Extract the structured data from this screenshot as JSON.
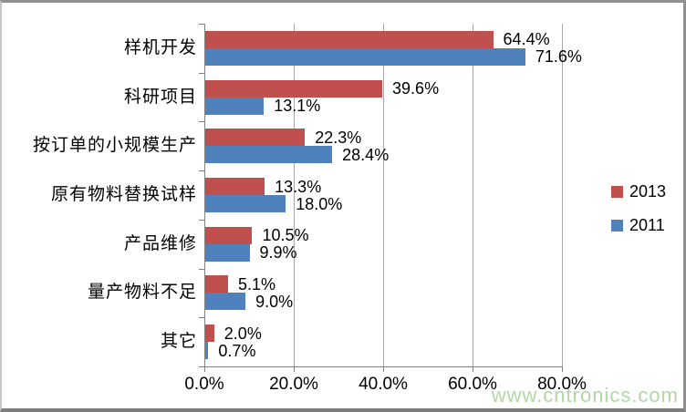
{
  "chart_data": {
    "type": "bar",
    "orientation": "horizontal",
    "title": "",
    "xlabel": "",
    "ylabel": "",
    "categories": [
      "样机开发",
      "科研项目",
      "按订单的小规模生产",
      "原有物料替换试样",
      "产品维修",
      "量产物料不足",
      "其它"
    ],
    "series": [
      {
        "name": "2013",
        "color": "#C0504D",
        "values": [
          64.4,
          39.6,
          22.3,
          13.3,
          10.5,
          5.1,
          2.0
        ]
      },
      {
        "name": "2011",
        "color": "#4F81BD",
        "values": [
          71.6,
          13.1,
          28.4,
          18.0,
          9.9,
          9.0,
          0.7
        ]
      }
    ],
    "data_label_format": "0.0%",
    "xlim": [
      0,
      80
    ],
    "x_ticks": [
      {
        "value": 0,
        "label": "0.0%"
      },
      {
        "value": 20,
        "label": "20.0%"
      },
      {
        "value": 40,
        "label": "40.0%"
      },
      {
        "value": 60,
        "label": "60.0%"
      },
      {
        "value": 80,
        "label": "80.0%"
      }
    ],
    "grid": true,
    "legend_position": "right"
  },
  "colors": {
    "series_2013": "#C0504D",
    "series_2011": "#4F81BD",
    "gridline": "#a8a8a8",
    "axis": "#808080",
    "watermark": "#a3d093"
  },
  "watermark": "www.cntronics.com"
}
